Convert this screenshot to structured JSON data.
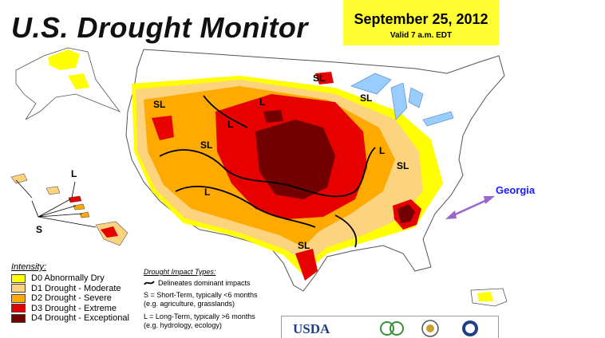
{
  "header": {
    "title": "U.S. Drought Monitor",
    "date": "September 25, 2012",
    "valid": "Valid 7 a.m. EDT"
  },
  "annotation": {
    "label": "Georgia",
    "color": "#1a1aff",
    "arrow_color": "#9966cc"
  },
  "map_labels": {
    "short_term": "SL",
    "long_term": "L",
    "short": "S"
  },
  "legend": {
    "title": "Intensity:",
    "items": [
      {
        "label": "D0 Abnormally Dry",
        "color": "#ffff00"
      },
      {
        "label": "D1 Drought - Moderate",
        "color": "#fcd37f"
      },
      {
        "label": "D2 Drought - Severe",
        "color": "#ffaa00"
      },
      {
        "label": "D3 Drought - Extreme",
        "color": "#e60000"
      },
      {
        "label": "D4 Drought - Exceptional",
        "color": "#730000"
      }
    ]
  },
  "impact": {
    "title": "Drought Impact Types:",
    "line_label": "Delineates dominant impacts",
    "short_text": "S = Short-Term, typically <6 months",
    "short_example": "(e.g. agriculture, grasslands)",
    "long_text": "L = Long-Term, typically >6 months",
    "long_example": "(e.g. hydrology, ecology)"
  },
  "logos": {
    "usda": "USDA"
  }
}
